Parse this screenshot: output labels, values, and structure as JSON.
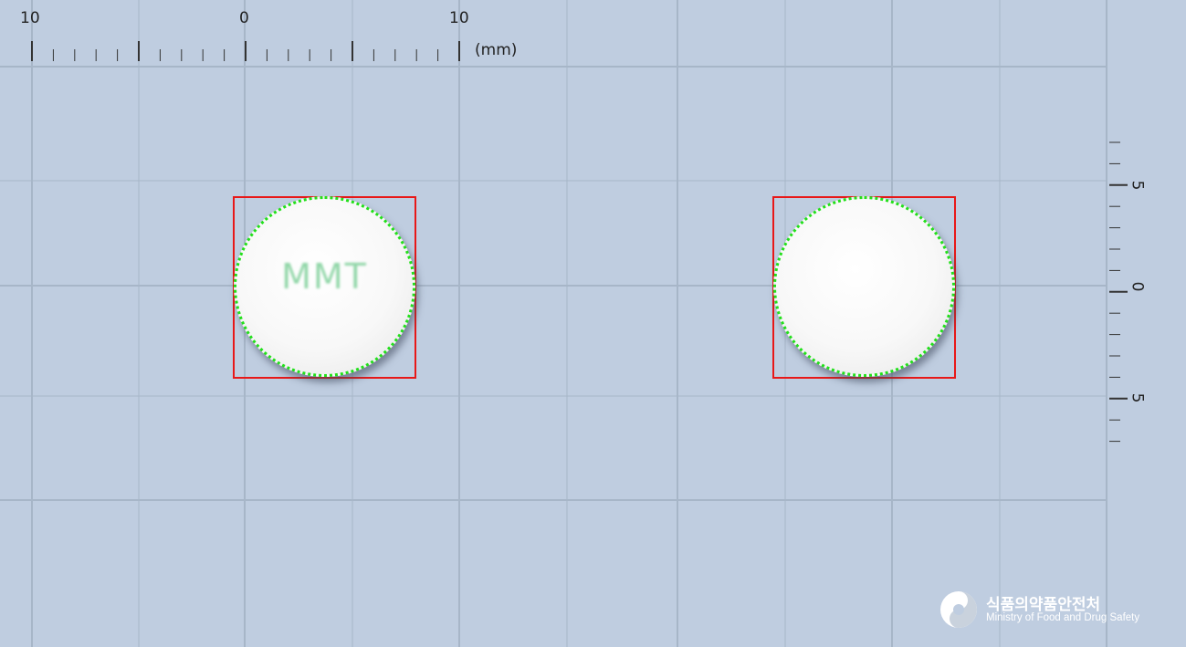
{
  "top_ruler": {
    "labels": [
      "10",
      "0",
      "10"
    ],
    "unit": "(mm)"
  },
  "side_ruler": {
    "labels": [
      "5",
      "0",
      "5"
    ]
  },
  "pills": [
    {
      "view": "front",
      "imprint": "MMT",
      "shape": "round",
      "color": "white"
    },
    {
      "view": "back",
      "imprint": "",
      "shape": "round",
      "color": "white"
    }
  ],
  "colors": {
    "background": "#bfcde0",
    "grid_line": "#a7b6c8",
    "outline_detection": "#22e01a",
    "bounding_box": "#e81818",
    "imprint_ink": "#7fd09a"
  },
  "logo": {
    "korean": "식품의약품안전처",
    "english": "Ministry of Food and Drug Safety"
  }
}
